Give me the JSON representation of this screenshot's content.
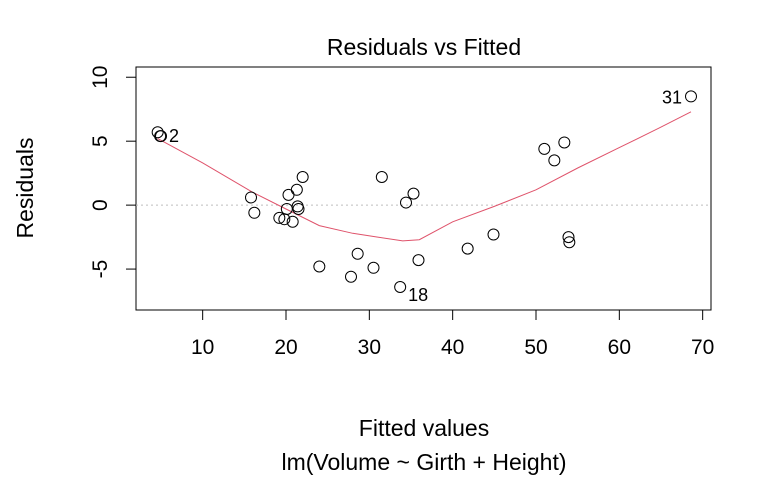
{
  "chart_data": {
    "type": "scatter",
    "title": "Residuals vs Fitted",
    "xlabel": "Fitted values",
    "subtitle": "lm(Volume ~ Girth + Height)",
    "ylabel": "Residuals",
    "xlim": [
      2,
      71
    ],
    "ylim": [
      -8.2,
      10.8
    ],
    "x_ticks": [
      10,
      20,
      30,
      40,
      50,
      60,
      70
    ],
    "y_ticks": [
      -5,
      0,
      5,
      10
    ],
    "points": [
      {
        "x": 4.6,
        "y": 5.7
      },
      {
        "x": 4.9,
        "y": 5.4
      },
      {
        "x": 5.0,
        "y": 5.4
      },
      {
        "x": 15.8,
        "y": 0.6
      },
      {
        "x": 16.2,
        "y": -0.6
      },
      {
        "x": 19.2,
        "y": -1.0
      },
      {
        "x": 19.8,
        "y": -1.1
      },
      {
        "x": 20.1,
        "y": -0.3
      },
      {
        "x": 20.3,
        "y": 0.8
      },
      {
        "x": 20.8,
        "y": -1.3
      },
      {
        "x": 21.3,
        "y": 1.2
      },
      {
        "x": 21.4,
        "y": -0.1
      },
      {
        "x": 21.5,
        "y": -0.3
      },
      {
        "x": 22.0,
        "y": 2.2
      },
      {
        "x": 24.0,
        "y": -4.8
      },
      {
        "x": 27.8,
        "y": -5.6
      },
      {
        "x": 28.6,
        "y": -3.8
      },
      {
        "x": 30.5,
        "y": -4.9
      },
      {
        "x": 31.5,
        "y": 2.2
      },
      {
        "x": 33.7,
        "y": -6.4
      },
      {
        "x": 34.4,
        "y": 0.2
      },
      {
        "x": 35.3,
        "y": 0.9
      },
      {
        "x": 35.9,
        "y": -4.3
      },
      {
        "x": 41.8,
        "y": -3.4
      },
      {
        "x": 44.9,
        "y": -2.3
      },
      {
        "x": 51.0,
        "y": 4.4
      },
      {
        "x": 52.2,
        "y": 3.5
      },
      {
        "x": 53.4,
        "y": 4.9
      },
      {
        "x": 53.9,
        "y": -2.5
      },
      {
        "x": 54.0,
        "y": -2.9
      },
      {
        "x": 68.6,
        "y": 8.5
      }
    ],
    "smooth_line": {
      "x": [
        4.6,
        10,
        16,
        20,
        24,
        28,
        31,
        34,
        36,
        40,
        45,
        50,
        55,
        60,
        65,
        68.6
      ],
      "y": [
        5.2,
        3.3,
        1.0,
        -0.3,
        -1.6,
        -2.2,
        -2.5,
        -2.8,
        -2.7,
        -1.3,
        -0.1,
        1.2,
        2.9,
        4.5,
        6.1,
        7.3
      ],
      "color": "#DF536B"
    },
    "zero_line": {
      "y": 0,
      "style": "dotted",
      "color": "#BEBEBE"
    },
    "labeled_points": [
      {
        "label": "2",
        "x": 5.0,
        "y": 5.4
      },
      {
        "label": "18",
        "x": 33.7,
        "y": -6.4
      },
      {
        "label": "31",
        "x": 68.6,
        "y": 8.5
      }
    ],
    "grid": false
  }
}
